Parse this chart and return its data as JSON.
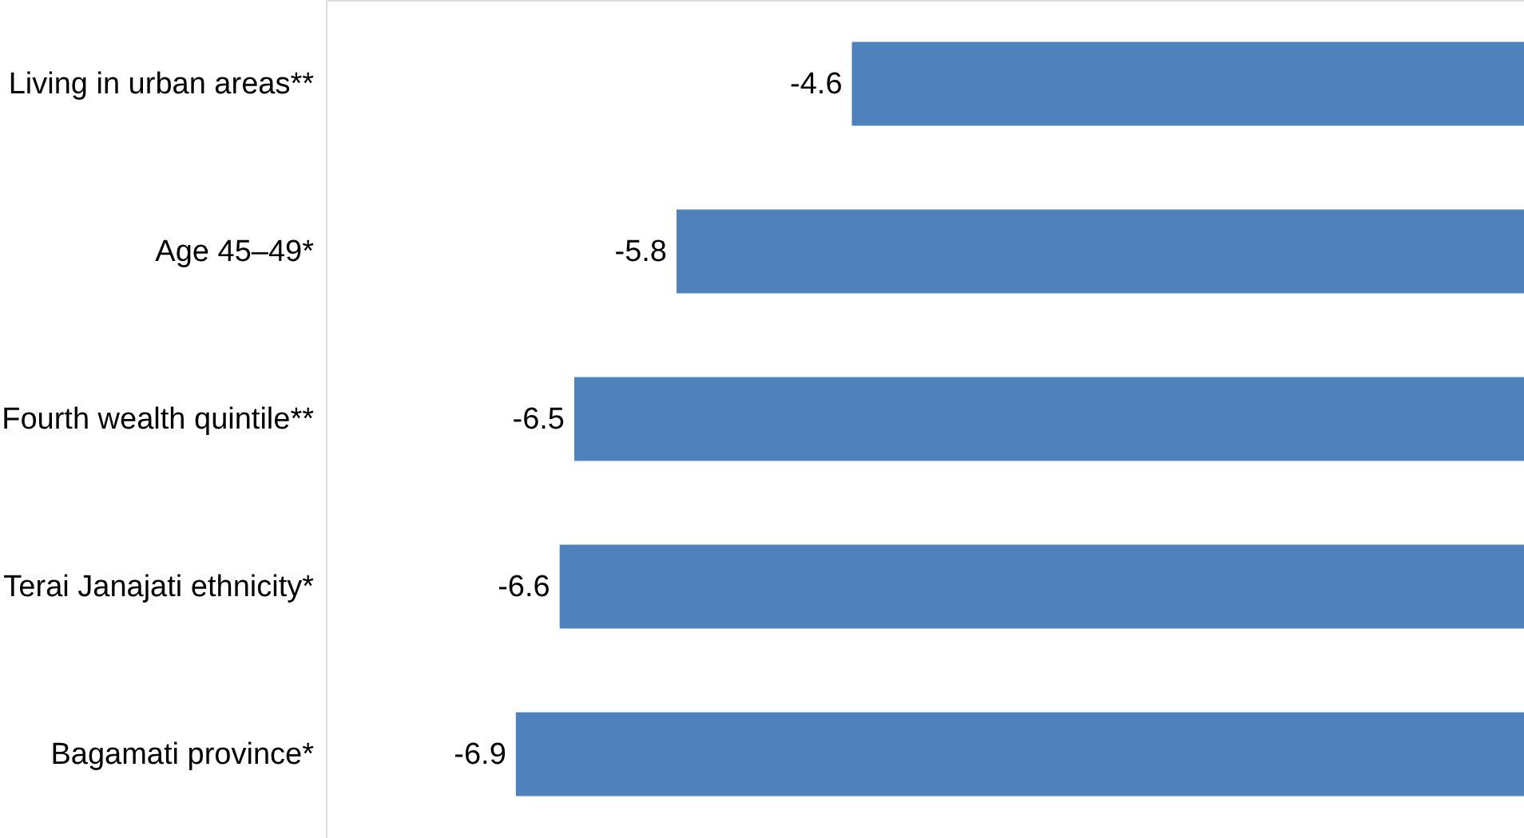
{
  "chart_data": {
    "type": "bar",
    "orientation": "horizontal",
    "categories": [
      "Living in urban areas**",
      "Age 45–49*",
      "Fourth wealth quintile**",
      "Terai Janajati ethnicity*",
      "Bagamati province*"
    ],
    "values": [
      -4.6,
      -5.8,
      -6.5,
      -6.6,
      -6.9
    ],
    "color": "#4f81bd",
    "xlim": [
      -8.2,
      0
    ],
    "data_labels": true,
    "tick_labels": "y"
  }
}
